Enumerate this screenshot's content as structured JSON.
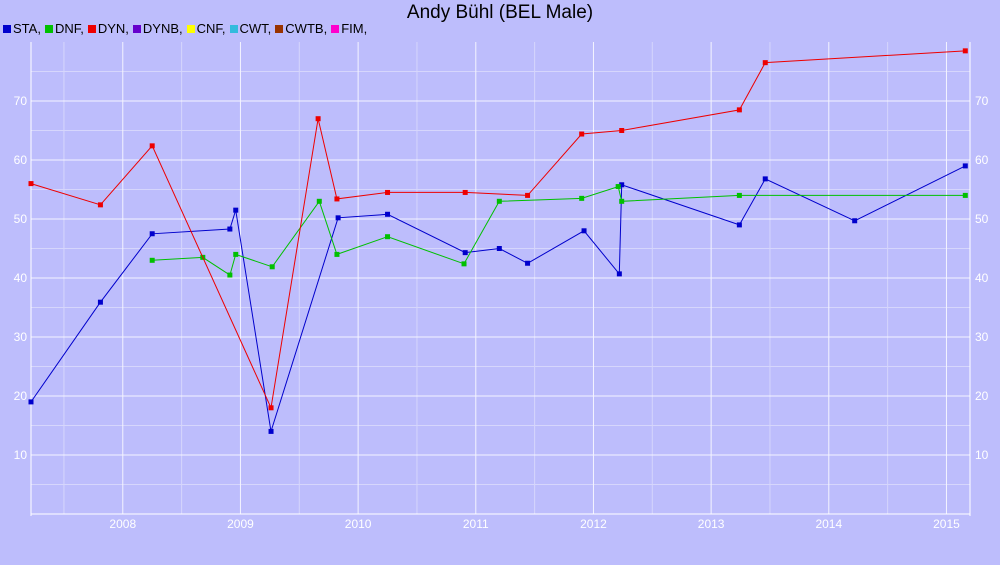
{
  "chart_data": {
    "type": "line",
    "title": "Andy Bühl (BEL Male)",
    "legend": {
      "placement": "top-left",
      "entries": [
        {
          "label": "STA,",
          "color": "#0000cc"
        },
        {
          "label": "DNF,",
          "color": "#00c000"
        },
        {
          "label": "DYN,",
          "color": "#ee0000"
        },
        {
          "label": "DYNB,",
          "color": "#6600cc"
        },
        {
          "label": "CNF,",
          "color": "#ffff00"
        },
        {
          "label": "CWT,",
          "color": "#33bbdd"
        },
        {
          "label": "CWTB,",
          "color": "#993300"
        },
        {
          "label": "FIM,",
          "color": "#ff00cc"
        }
      ]
    },
    "grid": true,
    "xlim": [
      2007.22,
      2015.2
    ],
    "ylim": [
      0,
      80
    ],
    "x_ticks": [
      2008,
      2009,
      2010,
      2011,
      2012,
      2013,
      2014,
      2015
    ],
    "x_tick_labels": [
      "2008",
      "2009",
      "2010",
      "2011",
      "2012",
      "2013",
      "2014",
      "2015"
    ],
    "y_ticks": [
      10,
      20,
      30,
      40,
      50,
      60,
      70
    ],
    "y_tick_labels": [
      "10",
      "20",
      "30",
      "40",
      "50",
      "60",
      "70"
    ],
    "series": [
      {
        "name": "STA,",
        "color": "#0000cc",
        "points": [
          [
            2007.22,
            19.0
          ],
          [
            2007.81,
            35.9
          ],
          [
            2008.25,
            47.5
          ],
          [
            2008.91,
            48.3
          ],
          [
            2008.96,
            51.5
          ],
          [
            2009.26,
            14.0
          ],
          [
            2009.83,
            50.2
          ],
          [
            2010.25,
            50.8
          ],
          [
            2010.91,
            44.3
          ],
          [
            2011.2,
            45.0
          ],
          [
            2011.44,
            42.5
          ],
          [
            2011.92,
            48.0
          ],
          [
            2012.22,
            40.7
          ],
          [
            2012.24,
            55.8
          ],
          [
            2013.24,
            49.0
          ],
          [
            2013.46,
            56.8
          ],
          [
            2014.22,
            49.7
          ],
          [
            2015.16,
            59.0
          ]
        ]
      },
      {
        "name": "DNF,",
        "color": "#00c000",
        "points": [
          [
            2008.25,
            43.0
          ],
          [
            2008.68,
            43.5
          ],
          [
            2008.91,
            40.5
          ],
          [
            2008.96,
            44.0
          ],
          [
            2009.27,
            41.9
          ],
          [
            2009.67,
            53.0
          ],
          [
            2009.82,
            44.0
          ],
          [
            2010.25,
            47.0
          ],
          [
            2010.9,
            42.4
          ],
          [
            2011.2,
            53.0
          ],
          [
            2011.9,
            53.5
          ],
          [
            2012.21,
            55.5
          ],
          [
            2012.24,
            53.0
          ],
          [
            2013.24,
            54.0
          ],
          [
            2015.16,
            54.0
          ]
        ]
      },
      {
        "name": "DYN,",
        "color": "#ee0000",
        "points": [
          [
            2007.22,
            56.0
          ],
          [
            2007.81,
            52.4
          ],
          [
            2008.25,
            62.4
          ],
          [
            2009.26,
            18.0
          ],
          [
            2009.66,
            67.0
          ],
          [
            2009.82,
            53.4
          ],
          [
            2010.25,
            54.5
          ],
          [
            2010.91,
            54.5
          ],
          [
            2011.44,
            54.0
          ],
          [
            2011.9,
            64.4
          ],
          [
            2012.24,
            65.0
          ],
          [
            2013.24,
            68.5
          ],
          [
            2013.46,
            76.5
          ],
          [
            2015.16,
            78.5
          ]
        ]
      }
    ]
  }
}
